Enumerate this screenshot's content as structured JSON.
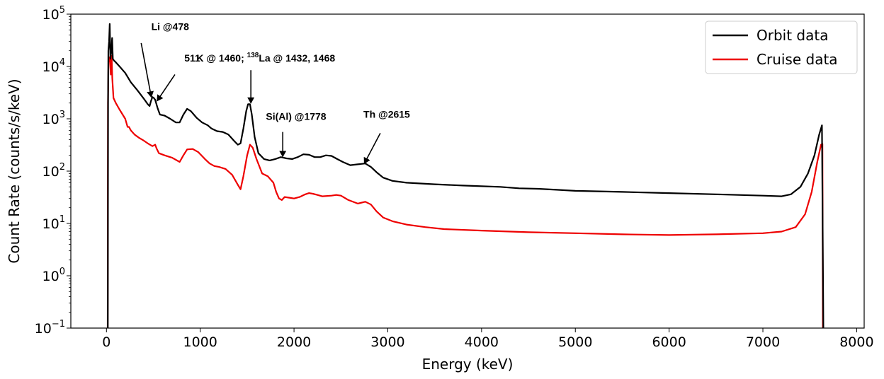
{
  "chart_data": {
    "type": "line",
    "xlabel": "Energy (keV)",
    "ylabel": "Count Rate (counts/s/keV)",
    "xlim": [
      -380,
      8080
    ],
    "ylim": [
      0.1,
      100000
    ],
    "yscale": "log",
    "xticks": [
      0,
      1000,
      2000,
      3000,
      4000,
      5000,
      6000,
      7000,
      8000
    ],
    "xtick_labels": [
      "0",
      "1000",
      "2000",
      "3000",
      "4000",
      "5000",
      "6000",
      "7000",
      "8000"
    ],
    "yticks": [
      {
        "value": 0.1,
        "base": "10",
        "exp": "−1"
      },
      {
        "value": 1,
        "base": "10",
        "exp": "0"
      },
      {
        "value": 10,
        "base": "10",
        "exp": "1"
      },
      {
        "value": 100,
        "base": "10",
        "exp": "2"
      },
      {
        "value": 1000,
        "base": "10",
        "exp": "3"
      },
      {
        "value": 10000,
        "base": "10",
        "exp": "4"
      },
      {
        "value": 100000,
        "base": "10",
        "exp": "5"
      }
    ],
    "grid": false,
    "legend_position": "top-right",
    "series": [
      {
        "name": "Orbit data",
        "color": "#000000",
        "points": [
          [
            14,
            0.1
          ],
          [
            17,
            3000
          ],
          [
            20,
            20000
          ],
          [
            28,
            30000
          ],
          [
            35,
            65000
          ],
          [
            42,
            14000
          ],
          [
            52,
            20000
          ],
          [
            60,
            35000
          ],
          [
            68,
            14000
          ],
          [
            80,
            13000
          ],
          [
            100,
            12000
          ],
          [
            140,
            10000
          ],
          [
            200,
            7500
          ],
          [
            260,
            5000
          ],
          [
            330,
            3500
          ],
          [
            400,
            2400
          ],
          [
            440,
            1900
          ],
          [
            460,
            1750
          ],
          [
            475,
            2200
          ],
          [
            490,
            2600
          ],
          [
            505,
            2500
          ],
          [
            520,
            2300
          ],
          [
            545,
            1600
          ],
          [
            570,
            1200
          ],
          [
            620,
            1150
          ],
          [
            680,
            1000
          ],
          [
            740,
            850
          ],
          [
            780,
            850
          ],
          [
            820,
            1200
          ],
          [
            860,
            1550
          ],
          [
            900,
            1400
          ],
          [
            960,
            1050
          ],
          [
            1020,
            850
          ],
          [
            1080,
            750
          ],
          [
            1120,
            650
          ],
          [
            1180,
            580
          ],
          [
            1240,
            560
          ],
          [
            1300,
            500
          ],
          [
            1360,
            380
          ],
          [
            1400,
            320
          ],
          [
            1430,
            340
          ],
          [
            1460,
            650
          ],
          [
            1490,
            1400
          ],
          [
            1510,
            1900
          ],
          [
            1530,
            1900
          ],
          [
            1550,
            1200
          ],
          [
            1580,
            450
          ],
          [
            1620,
            220
          ],
          [
            1680,
            170
          ],
          [
            1740,
            160
          ],
          [
            1800,
            170
          ],
          [
            1860,
            185
          ],
          [
            1920,
            175
          ],
          [
            1980,
            170
          ],
          [
            2040,
            185
          ],
          [
            2100,
            210
          ],
          [
            2160,
            205
          ],
          [
            2220,
            185
          ],
          [
            2280,
            185
          ],
          [
            2340,
            200
          ],
          [
            2400,
            195
          ],
          [
            2460,
            170
          ],
          [
            2520,
            150
          ],
          [
            2600,
            130
          ],
          [
            2680,
            135
          ],
          [
            2760,
            140
          ],
          [
            2820,
            120
          ],
          [
            2880,
            95
          ],
          [
            2950,
            75
          ],
          [
            3050,
            65
          ],
          [
            3200,
            60
          ],
          [
            3500,
            56
          ],
          [
            3800,
            53
          ],
          [
            4200,
            50
          ],
          [
            4400,
            47
          ],
          [
            4600,
            46
          ],
          [
            4800,
            44
          ],
          [
            5000,
            42
          ],
          [
            5500,
            40
          ],
          [
            6000,
            38
          ],
          [
            6500,
            36
          ],
          [
            7000,
            34
          ],
          [
            7200,
            33
          ],
          [
            7300,
            36
          ],
          [
            7400,
            50
          ],
          [
            7480,
            90
          ],
          [
            7550,
            200
          ],
          [
            7600,
            500
          ],
          [
            7630,
            750
          ],
          [
            7645,
            0.1
          ]
        ]
      },
      {
        "name": "Cruise data",
        "color": "#ee0000",
        "points": [
          [
            13,
            0.1
          ],
          [
            16,
            2000
          ],
          [
            22,
            12000
          ],
          [
            30,
            15000
          ],
          [
            38,
            14000
          ],
          [
            46,
            7000
          ],
          [
            55,
            16000
          ],
          [
            62,
            6000
          ],
          [
            75,
            2500
          ],
          [
            100,
            2000
          ],
          [
            140,
            1500
          ],
          [
            200,
            1000
          ],
          [
            225,
            700
          ],
          [
            240,
            700
          ],
          [
            260,
            600
          ],
          [
            300,
            500
          ],
          [
            350,
            430
          ],
          [
            400,
            380
          ],
          [
            450,
            330
          ],
          [
            490,
            300
          ],
          [
            520,
            320
          ],
          [
            535,
            270
          ],
          [
            560,
            220
          ],
          [
            620,
            200
          ],
          [
            700,
            180
          ],
          [
            780,
            150
          ],
          [
            820,
            200
          ],
          [
            860,
            260
          ],
          [
            920,
            265
          ],
          [
            980,
            230
          ],
          [
            1050,
            170
          ],
          [
            1100,
            140
          ],
          [
            1150,
            125
          ],
          [
            1200,
            120
          ],
          [
            1270,
            110
          ],
          [
            1340,
            85
          ],
          [
            1400,
            55
          ],
          [
            1430,
            45
          ],
          [
            1460,
            80
          ],
          [
            1500,
            200
          ],
          [
            1530,
            320
          ],
          [
            1560,
            280
          ],
          [
            1600,
            170
          ],
          [
            1660,
            90
          ],
          [
            1720,
            80
          ],
          [
            1780,
            60
          ],
          [
            1810,
            40
          ],
          [
            1840,
            30
          ],
          [
            1870,
            28
          ],
          [
            1900,
            32
          ],
          [
            1950,
            31
          ],
          [
            2000,
            30
          ],
          [
            2060,
            32
          ],
          [
            2120,
            36
          ],
          [
            2160,
            38
          ],
          [
            2200,
            37
          ],
          [
            2250,
            35
          ],
          [
            2300,
            33
          ],
          [
            2400,
            34
          ],
          [
            2450,
            35
          ],
          [
            2500,
            34
          ],
          [
            2580,
            28
          ],
          [
            2680,
            24
          ],
          [
            2760,
            26
          ],
          [
            2820,
            23
          ],
          [
            2880,
            17
          ],
          [
            2950,
            13
          ],
          [
            3050,
            11
          ],
          [
            3200,
            9.5
          ],
          [
            3400,
            8.5
          ],
          [
            3600,
            7.8
          ],
          [
            4000,
            7.3
          ],
          [
            4500,
            6.8
          ],
          [
            5000,
            6.5
          ],
          [
            5500,
            6.2
          ],
          [
            6000,
            6.0
          ],
          [
            6500,
            6.2
          ],
          [
            7000,
            6.5
          ],
          [
            7200,
            7.0
          ],
          [
            7350,
            8.5
          ],
          [
            7450,
            15
          ],
          [
            7520,
            40
          ],
          [
            7580,
            150
          ],
          [
            7620,
            320
          ],
          [
            7635,
            330
          ],
          [
            7640,
            0.1
          ]
        ]
      }
    ],
    "annotations": [
      {
        "id": "li",
        "text": "Li @478",
        "text_x": 478,
        "text_y": 50000,
        "arrow_from_x": 370,
        "arrow_from_y": 28000,
        "arrow_to_x": 478,
        "arrow_to_y": 2600
      },
      {
        "id": "511",
        "text": "511",
        "text_x": 830,
        "text_y": 12500,
        "arrow_from_x": 730,
        "arrow_from_y": 7000,
        "arrow_to_x": 540,
        "arrow_to_y": 2200
      },
      {
        "id": "k",
        "text": "K @ 1460; ",
        "text_x": 960,
        "text_y": 12500,
        "super": "138",
        "text_after": "La @ 1432, 1468",
        "arrow_from_x": 1540,
        "arrow_from_y": 8500,
        "arrow_to_x": 1540,
        "arrow_to_y": 2000
      },
      {
        "id": "si",
        "text": "Si(Al) @1778",
        "text_x": 1700,
        "text_y": 950,
        "arrow_from_x": 1880,
        "arrow_from_y": 560,
        "arrow_to_x": 1880,
        "arrow_to_y": 190
      },
      {
        "id": "th",
        "text": "Th @2615",
        "text_x": 2740,
        "text_y": 1050,
        "arrow_from_x": 2920,
        "arrow_from_y": 530,
        "arrow_to_x": 2750,
        "arrow_to_y": 140
      }
    ]
  }
}
